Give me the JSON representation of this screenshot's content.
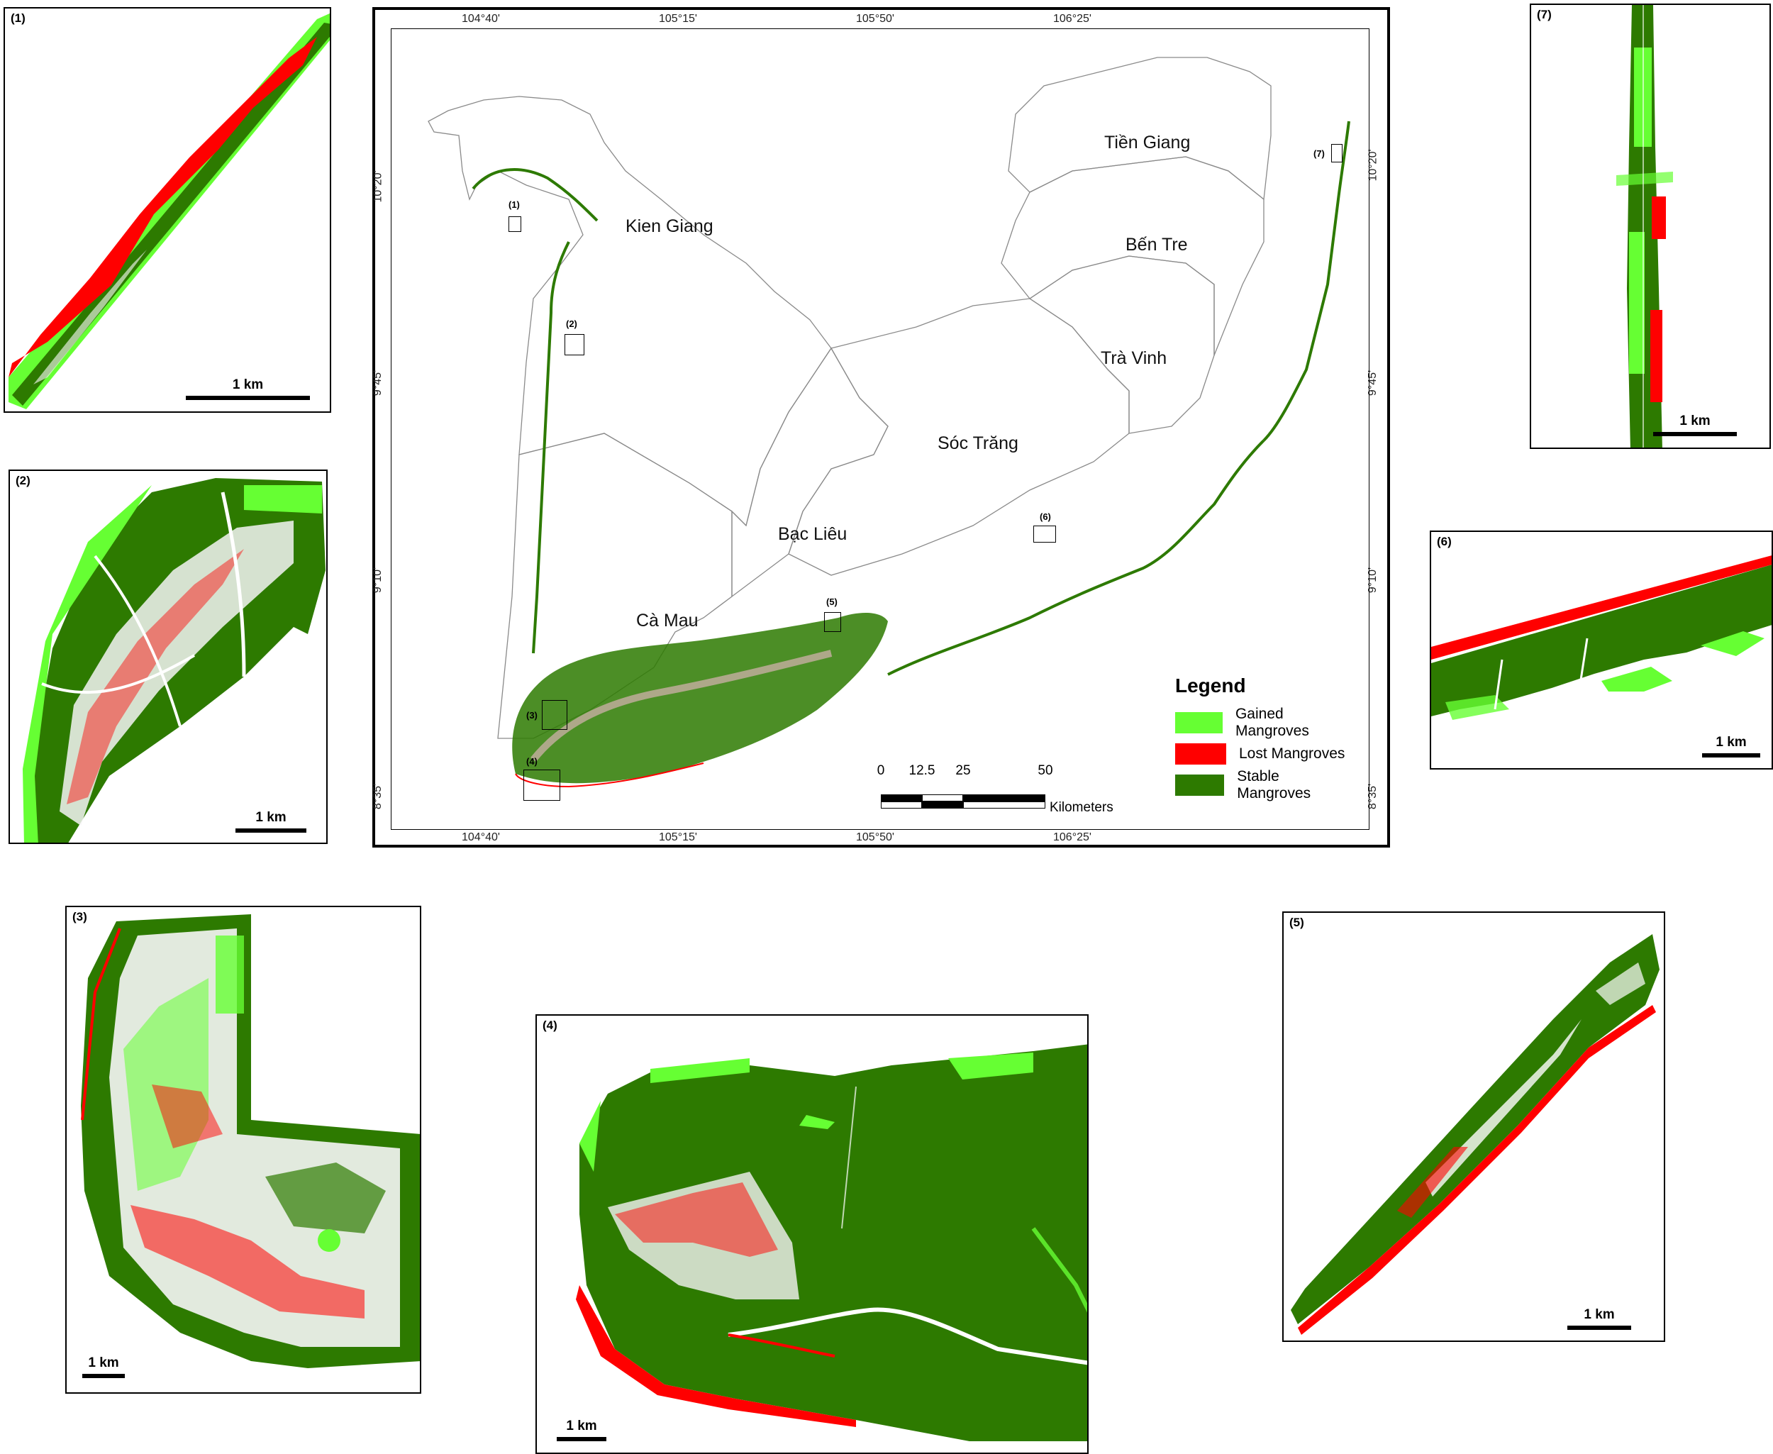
{
  "main_map": {
    "top_ticks": [
      "104°40'",
      "105°15'",
      "105°50'",
      "106°25'"
    ],
    "bottom_ticks": [
      "104°40'",
      "105°15'",
      "105°50'",
      "106°25'"
    ],
    "left_ticks": [
      "10°20'",
      "9°45'",
      "9°10'",
      "8°35'"
    ],
    "right_ticks": [
      "10°20'",
      "9°45'",
      "9°10'",
      "8°35'"
    ],
    "provinces": {
      "kien_giang": "Kien Giang",
      "tien_giang": "Tiền Giang",
      "ben_tre": "Bến Tre",
      "tra_vinh": "Trà Vinh",
      "soc_trang": "Sóc Trăng",
      "bac_lieu": "Bạc Liêu",
      "ca_mau": "Cà Mau"
    },
    "locator_labels": [
      "(1)",
      "(2)",
      "(3)",
      "(4)",
      "(5)",
      "(6)",
      "(7)"
    ],
    "legend": {
      "title": "Legend",
      "items": [
        {
          "label": "Gained Mangroves",
          "color": "#66ff33"
        },
        {
          "label": "Lost Mangroves",
          "color": "#ff0000"
        },
        {
          "label": "Stable Mangroves",
          "color": "#2d7a00"
        }
      ]
    },
    "scale_bar": {
      "labels": [
        "0",
        "12.5",
        "25",
        "50"
      ],
      "unit": "Kilometers"
    }
  },
  "insets": [
    {
      "label": "(1)",
      "scale": "1 km"
    },
    {
      "label": "(2)",
      "scale": "1 km"
    },
    {
      "label": "(3)",
      "scale": "1 km"
    },
    {
      "label": "(4)",
      "scale": "1 km"
    },
    {
      "label": "(5)",
      "scale": "1 km"
    },
    {
      "label": "(6)",
      "scale": "1 km"
    },
    {
      "label": "(7)",
      "scale": "1 km"
    }
  ],
  "colors": {
    "gained": "#66ff33",
    "lost": "#ff0000",
    "stable": "#2d7a00"
  }
}
